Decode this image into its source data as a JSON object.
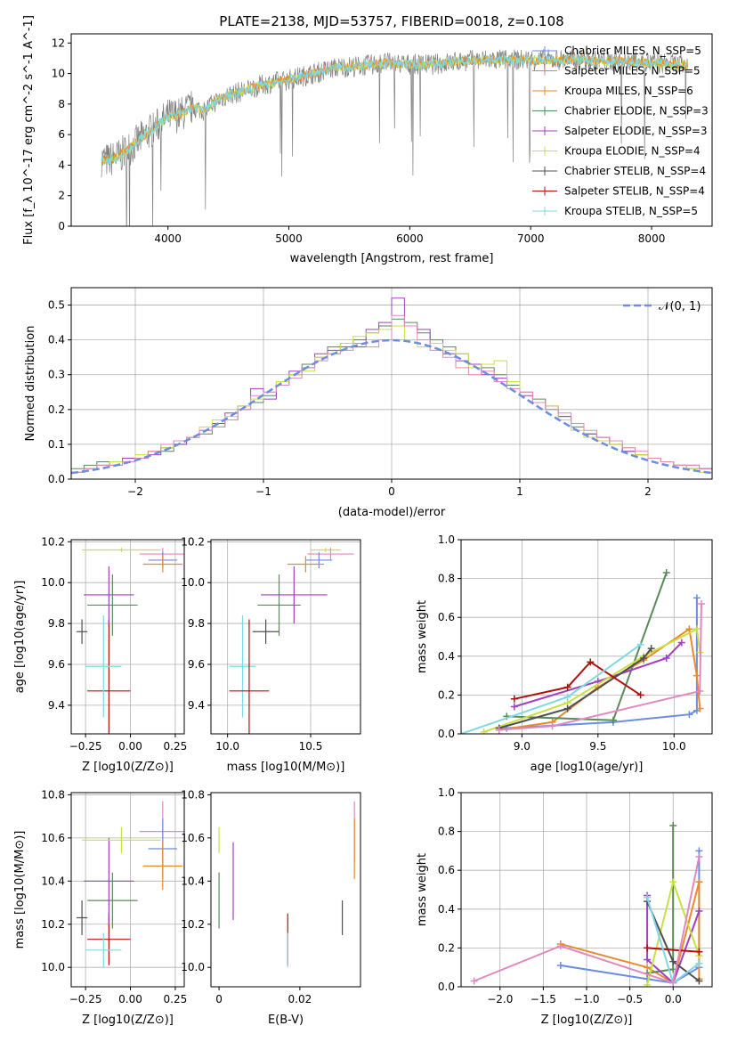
{
  "colors": {
    "chabrier_miles": "#6a8ee0",
    "salpeter_miles": "#e07a7a",
    "kroupa_miles": "#e88a2e",
    "chabrier_elodie": "#5a8a5a",
    "salpeter_elodie": "#a040c0",
    "kroupa_elodie": "#c8e040",
    "chabrier_stelib": "#505050",
    "salpeter_stelib": "#b01010",
    "kroupa_stelib": "#80d8e0",
    "pink": "#e088c0"
  },
  "chart_data": [
    {
      "type": "line",
      "title": "PLATE=2138, MJD=53757, FIBERID=0018, z=0.108",
      "xlabel": "wavelength [Angstrom, rest frame]",
      "ylabel": "Flux [f_λ 10^-17 erg cm^-2 s^-1 A^-1]",
      "xlim": [
        3200,
        8500
      ],
      "ylim": [
        0,
        12.6
      ],
      "xticks": [
        4000,
        5000,
        6000,
        7000,
        8000
      ],
      "yticks": [
        0,
        2,
        4,
        6,
        8,
        10,
        12
      ],
      "legend": "right",
      "legend_entries": [
        "Chabrier MILES, N_SSP=5",
        "Salpeter MILES, N_SSP=5",
        "Kroupa MILES, N_SSP=6",
        "Chabrier ELODIE, N_SSP=3",
        "Salpeter ELODIE, N_SSP=3",
        "Kroupa ELODIE, N_SSP=4",
        "Chabrier STELIB, N_SSP=4",
        "Salpeter STELIB, N_SSP=4",
        "Kroupa STELIB, N_SSP=5"
      ],
      "spectrum": {
        "x": [
          3450,
          3500,
          3600,
          3700,
          3800,
          3900,
          4000,
          4100,
          4200,
          4300,
          4400,
          4500,
          4600,
          4800,
          5000,
          5200,
          5400,
          5600,
          5800,
          6000,
          6200,
          6400,
          6600,
          6800,
          7000,
          7200,
          7400,
          7600,
          7800,
          8000,
          8200,
          8300
        ],
        "model": [
          4.4,
          4.3,
          4.6,
          5.2,
          5.9,
          6.5,
          7.2,
          7.3,
          7.8,
          7.6,
          8.2,
          8.6,
          8.8,
          9.3,
          9.6,
          10.0,
          10.4,
          10.5,
          10.7,
          10.6,
          10.6,
          10.8,
          10.9,
          10.9,
          10.9,
          10.9,
          10.9,
          10.8,
          10.8,
          10.7,
          10.6,
          10.5
        ]
      }
    },
    {
      "type": "bar",
      "xlabel": "(data-model)/error",
      "ylabel": "Normed distribution",
      "xlim": [
        -2.5,
        2.5
      ],
      "ylim": [
        0,
        0.55
      ],
      "xticks": [
        -2,
        -1,
        0,
        1,
        2
      ],
      "yticks": [
        0,
        0.1,
        0.2,
        0.3,
        0.4,
        0.5
      ],
      "legend": "top-right",
      "legend_label": "N(0,1)",
      "bin_edges": [
        -2.5,
        -2.4,
        -2.3,
        -2.2,
        -2.1,
        -2.0,
        -1.9,
        -1.8,
        -1.7,
        -1.6,
        -1.5,
        -1.4,
        -1.3,
        -1.2,
        -1.1,
        -1.0,
        -0.9,
        -0.8,
        -0.7,
        -0.6,
        -0.5,
        -0.4,
        -0.3,
        -0.2,
        -0.1,
        0.0,
        0.1,
        0.2,
        0.3,
        0.4,
        0.5,
        0.6,
        0.7,
        0.8,
        0.9,
        1.0,
        1.1,
        1.2,
        1.3,
        1.4,
        1.5,
        1.6,
        1.7,
        1.8,
        1.9,
        2.0,
        2.1,
        2.2,
        2.3,
        2.4,
        2.5
      ],
      "series": [
        {
          "color": "chabrier_elodie",
          "values": [
            0.03,
            0.04,
            0.05,
            0.04,
            0.05,
            0.06,
            0.08,
            0.08,
            0.1,
            0.12,
            0.13,
            0.15,
            0.17,
            0.2,
            0.22,
            0.24,
            0.28,
            0.3,
            0.33,
            0.35,
            0.38,
            0.39,
            0.4,
            0.42,
            0.44,
            0.46,
            0.45,
            0.42,
            0.4,
            0.38,
            0.36,
            0.33,
            0.32,
            0.3,
            0.27,
            0.25,
            0.23,
            0.2,
            0.18,
            0.15,
            0.13,
            0.12,
            0.1,
            0.08,
            0.07,
            0.06,
            0.05,
            0.04,
            0.04,
            0.03
          ]
        },
        {
          "color": "salpeter_elodie",
          "values": [
            0.02,
            0.03,
            0.04,
            0.05,
            0.06,
            0.06,
            0.07,
            0.09,
            0.1,
            0.12,
            0.14,
            0.16,
            0.19,
            0.21,
            0.26,
            0.23,
            0.27,
            0.31,
            0.32,
            0.36,
            0.37,
            0.38,
            0.38,
            0.43,
            0.45,
            0.52,
            0.44,
            0.43,
            0.39,
            0.36,
            0.34,
            0.33,
            0.3,
            0.29,
            0.28,
            0.24,
            0.22,
            0.21,
            0.18,
            0.16,
            0.13,
            0.12,
            0.1,
            0.08,
            0.07,
            0.06,
            0.05,
            0.04,
            0.03,
            0.03
          ]
        },
        {
          "color": "kroupa_elodie",
          "values": [
            0.02,
            0.03,
            0.04,
            0.05,
            0.05,
            0.07,
            0.08,
            0.09,
            0.11,
            0.12,
            0.15,
            0.17,
            0.18,
            0.21,
            0.23,
            0.25,
            0.28,
            0.3,
            0.31,
            0.35,
            0.36,
            0.39,
            0.41,
            0.42,
            0.43,
            0.44,
            0.4,
            0.38,
            0.39,
            0.37,
            0.36,
            0.32,
            0.33,
            0.34,
            0.28,
            0.25,
            0.22,
            0.21,
            0.17,
            0.14,
            0.12,
            0.11,
            0.1,
            0.09,
            0.07,
            0.06,
            0.05,
            0.04,
            0.03,
            0.02
          ]
        },
        {
          "color": "pink",
          "values": [
            0.02,
            0.03,
            0.04,
            0.04,
            0.05,
            0.06,
            0.08,
            0.1,
            0.11,
            0.12,
            0.14,
            0.15,
            0.17,
            0.2,
            0.24,
            0.25,
            0.27,
            0.29,
            0.32,
            0.34,
            0.36,
            0.37,
            0.39,
            0.38,
            0.4,
            0.47,
            0.44,
            0.4,
            0.37,
            0.35,
            0.32,
            0.3,
            0.31,
            0.28,
            0.26,
            0.25,
            0.22,
            0.2,
            0.19,
            0.16,
            0.14,
            0.12,
            0.11,
            0.09,
            0.08,
            0.06,
            0.05,
            0.04,
            0.04,
            0.03
          ]
        }
      ],
      "gaussian": {
        "mean": 0,
        "sigma": 1
      }
    },
    {
      "type": "errorbar",
      "xlabel": "Z [log10(Z/Z⊙)]",
      "ylabel": "age  [log10(age/yr)]",
      "xlim": [
        -0.33,
        0.3
      ],
      "ylim": [
        9.26,
        10.21
      ],
      "xticks": [
        -0.25,
        0.0,
        0.25
      ],
      "yticks": [
        9.4,
        9.6,
        9.8,
        10.0,
        10.2
      ],
      "points": [
        {
          "x": -0.27,
          "y": 9.76,
          "xerr": 0.03,
          "yerr": 0.06,
          "color": "chabrier_stelib"
        },
        {
          "x": -0.12,
          "y": 9.47,
          "xerr": 0.12,
          "yerr": 0.35,
          "color": "salpeter_stelib"
        },
        {
          "x": -0.15,
          "y": 9.59,
          "xerr": 0.1,
          "yerr": 0.25,
          "color": "kroupa_stelib"
        },
        {
          "x": -0.12,
          "y": 9.94,
          "xerr": 0.14,
          "yerr": 0.14,
          "color": "salpeter_elodie"
        },
        {
          "x": -0.1,
          "y": 9.89,
          "xerr": 0.14,
          "yerr": 0.15,
          "color": "chabrier_elodie"
        },
        {
          "x": -0.05,
          "y": 10.16,
          "xerr": 0.22,
          "yerr": 0.01,
          "color": "kroupa_elodie"
        },
        {
          "x": 0.18,
          "y": 10.14,
          "xerr": 0.13,
          "yerr": 0.03,
          "color": "pink"
        },
        {
          "x": 0.18,
          "y": 10.11,
          "xerr": 0.08,
          "yerr": 0.04,
          "color": "chabrier_miles"
        },
        {
          "x": 0.18,
          "y": 10.09,
          "xerr": 0.11,
          "yerr": 0.04,
          "color": "kroupa_miles"
        }
      ]
    },
    {
      "type": "errorbar",
      "xlabel": "mass [log10(M/M⊙)]",
      "ylabel": "",
      "xlim": [
        9.9,
        10.8
      ],
      "ylim": [
        9.26,
        10.21
      ],
      "xticks": [
        10.0,
        10.5
      ],
      "yticks": [
        9.4,
        9.6,
        9.8,
        10.0,
        10.2
      ],
      "points": [
        {
          "x": 10.09,
          "y": 9.59,
          "xerr": 0.08,
          "yerr": 0.25,
          "color": "kroupa_stelib"
        },
        {
          "x": 10.13,
          "y": 9.47,
          "xerr": 0.12,
          "yerr": 0.35,
          "color": "salpeter_stelib"
        },
        {
          "x": 10.23,
          "y": 9.76,
          "xerr": 0.08,
          "yerr": 0.06,
          "color": "chabrier_stelib"
        },
        {
          "x": 10.31,
          "y": 9.89,
          "xerr": 0.13,
          "yerr": 0.15,
          "color": "chabrier_elodie"
        },
        {
          "x": 10.4,
          "y": 9.94,
          "xerr": 0.2,
          "yerr": 0.14,
          "color": "salpeter_elodie"
        },
        {
          "x": 10.59,
          "y": 10.16,
          "xerr": 0.09,
          "yerr": 0.01,
          "color": "kroupa_elodie"
        },
        {
          "x": 10.62,
          "y": 10.14,
          "xerr": 0.14,
          "yerr": 0.03,
          "color": "pink"
        },
        {
          "x": 10.55,
          "y": 10.11,
          "xerr": 0.08,
          "yerr": 0.04,
          "color": "chabrier_miles"
        },
        {
          "x": 10.47,
          "y": 10.09,
          "xerr": 0.11,
          "yerr": 0.04,
          "color": "kroupa_miles"
        }
      ]
    },
    {
      "type": "line",
      "xlabel": "age  [log10(age/yr)]",
      "ylabel": "mass weight",
      "xlim": [
        8.6,
        10.25
      ],
      "ylim": [
        0,
        1.0
      ],
      "xticks": [
        9.0,
        9.5,
        10.0
      ],
      "yticks": [
        0.0,
        0.2,
        0.4,
        0.6,
        0.8,
        1.0
      ],
      "series": [
        {
          "color": "chabrier_miles",
          "x": [
            8.9,
            9.6,
            10.1,
            10.15,
            10.15
          ],
          "y": [
            0.03,
            0.06,
            0.1,
            0.12,
            0.7
          ]
        },
        {
          "color": "kroupa_miles",
          "x": [
            8.85,
            9.2,
            9.5,
            9.8,
            10.1,
            10.15,
            10.17
          ],
          "y": [
            0.02,
            0.06,
            0.24,
            0.38,
            0.54,
            0.3,
            0.13
          ]
        },
        {
          "color": "chabrier_elodie",
          "x": [
            8.9,
            9.6,
            9.95
          ],
          "y": [
            0.09,
            0.07,
            0.83
          ]
        },
        {
          "color": "salpeter_elodie",
          "x": [
            8.95,
            9.5,
            9.95,
            10.05
          ],
          "y": [
            0.14,
            0.27,
            0.39,
            0.47
          ]
        },
        {
          "color": "kroupa_elodie",
          "x": [
            8.75,
            9.3,
            9.8,
            10.15,
            10.17
          ],
          "y": [
            0.01,
            0.16,
            0.4,
            0.54,
            0.42
          ]
        },
        {
          "color": "chabrier_stelib",
          "x": [
            8.85,
            9.3,
            9.8,
            9.85
          ],
          "y": [
            0.03,
            0.13,
            0.39,
            0.44
          ]
        },
        {
          "color": "salpeter_stelib",
          "x": [
            8.95,
            9.3,
            9.45,
            9.78
          ],
          "y": [
            0.18,
            0.24,
            0.37,
            0.2
          ]
        },
        {
          "color": "kroupa_stelib",
          "x": [
            8.6,
            9.3,
            9.78
          ],
          "y": [
            0.0,
            0.19,
            0.46
          ]
        },
        {
          "color": "pink",
          "x": [
            8.85,
            9.2,
            10.17,
            10.18
          ],
          "y": [
            0.02,
            0.04,
            0.22,
            0.67
          ]
        }
      ]
    },
    {
      "type": "errorbar",
      "xlabel": "Z [log10(Z/Z⊙)]",
      "ylabel": "mass [log10(M/M⊙)]",
      "xlim": [
        -0.33,
        0.3
      ],
      "ylim": [
        9.91,
        10.81
      ],
      "xticks": [
        -0.25,
        0.0,
        0.25
      ],
      "yticks": [
        10.0,
        10.2,
        10.4,
        10.6,
        10.8
      ],
      "points": [
        {
          "x": -0.27,
          "y": 10.23,
          "xerr": 0.03,
          "yerr": 0.08,
          "color": "chabrier_stelib"
        },
        {
          "x": -0.12,
          "y": 10.13,
          "xerr": 0.12,
          "yerr": 0.12,
          "color": "salpeter_stelib"
        },
        {
          "x": -0.15,
          "y": 10.08,
          "xerr": 0.1,
          "yerr": 0.08,
          "color": "kroupa_stelib"
        },
        {
          "x": -0.1,
          "y": 10.31,
          "xerr": 0.14,
          "yerr": 0.13,
          "color": "chabrier_elodie"
        },
        {
          "x": -0.12,
          "y": 10.4,
          "xerr": 0.14,
          "yerr": 0.2,
          "color": "salpeter_elodie"
        },
        {
          "x": -0.05,
          "y": 10.59,
          "xerr": 0.22,
          "yerr": 0.06,
          "color": "kroupa_elodie"
        },
        {
          "x": 0.18,
          "y": 10.63,
          "xerr": 0.13,
          "yerr": 0.14,
          "color": "pink"
        },
        {
          "x": 0.18,
          "y": 10.55,
          "xerr": 0.08,
          "yerr": 0.14,
          "color": "chabrier_miles"
        },
        {
          "x": 0.18,
          "y": 10.47,
          "xerr": 0.11,
          "yerr": 0.11,
          "color": "kroupa_miles"
        }
      ]
    },
    {
      "type": "errorbar",
      "xlabel": "E(B-V)",
      "ylabel": "",
      "xlim": [
        -0.002,
        0.035
      ],
      "ylim": [
        9.91,
        10.81
      ],
      "xticks": [
        0.0,
        0.02
      ],
      "yticks": [
        10.0,
        10.2,
        10.4,
        10.6,
        10.8
      ],
      "points": [
        {
          "x": 0.0,
          "y": 10.31,
          "xerr": 0,
          "yerr": 0.13,
          "color": "chabrier_elodie"
        },
        {
          "x": 0.0,
          "y": 10.59,
          "xerr": 0,
          "yerr": 0.06,
          "color": "kroupa_elodie"
        },
        {
          "x": 0.0035,
          "y": 10.4,
          "xerr": 0,
          "yerr": 0.18,
          "color": "salpeter_elodie"
        },
        {
          "x": 0.017,
          "y": 10.13,
          "xerr": 0,
          "yerr": 0.12,
          "color": "salpeter_stelib"
        },
        {
          "x": 0.017,
          "y": 10.08,
          "xerr": 0,
          "yerr": 0.08,
          "color": "kroupa_stelib"
        },
        {
          "x": 0.0305,
          "y": 10.23,
          "xerr": 0,
          "yerr": 0.08,
          "color": "chabrier_stelib"
        },
        {
          "x": 0.0335,
          "y": 10.63,
          "xerr": 0,
          "yerr": 0.14,
          "color": "pink"
        },
        {
          "x": 0.0335,
          "y": 10.55,
          "xerr": 0,
          "yerr": 0.14,
          "color": "kroupa_miles"
        }
      ]
    },
    {
      "type": "line",
      "xlabel": "Z [log10(Z/Z⊙)]",
      "ylabel": "mass weight",
      "xlim": [
        -2.45,
        0.45
      ],
      "ylim": [
        0,
        1.0
      ],
      "xticks": [
        -2.0,
        -1.5,
        -1.0,
        -0.5,
        0.0
      ],
      "yticks": [
        0.0,
        0.2,
        0.4,
        0.6,
        0.8,
        1.0
      ],
      "series": [
        {
          "color": "chabrier_miles",
          "x": [
            -1.3,
            -0.3,
            0.0,
            0.3,
            0.3
          ],
          "y": [
            0.11,
            0.04,
            0.02,
            0.1,
            0.7
          ]
        },
        {
          "color": "kroupa_miles",
          "x": [
            -1.3,
            -0.3,
            0.0,
            0.3,
            0.3
          ],
          "y": [
            0.22,
            0.1,
            0.02,
            0.54,
            0.04
          ]
        },
        {
          "color": "chabrier_elodie",
          "x": [
            -0.3,
            0.0,
            0.0
          ],
          "y": [
            0.07,
            0.09,
            0.83
          ]
        },
        {
          "color": "salpeter_elodie",
          "x": [
            -0.3,
            -0.3,
            0.0,
            0.3
          ],
          "y": [
            0.47,
            0.14,
            0.02,
            0.39
          ]
        },
        {
          "color": "kroupa_elodie",
          "x": [
            -0.3,
            0.0,
            0.3
          ],
          "y": [
            0.01,
            0.54,
            0.16
          ]
        },
        {
          "color": "chabrier_stelib",
          "x": [
            -0.3,
            0.0,
            0.3
          ],
          "y": [
            0.44,
            0.13,
            0.03
          ]
        },
        {
          "color": "salpeter_stelib",
          "x": [
            -0.3,
            0.3
          ],
          "y": [
            0.2,
            0.18
          ]
        },
        {
          "color": "kroupa_stelib",
          "x": [
            -0.3,
            0.0,
            0.3
          ],
          "y": [
            0.46,
            0.02,
            0.12
          ]
        },
        {
          "color": "pink",
          "x": [
            -2.3,
            -1.3,
            0.0,
            0.3
          ],
          "y": [
            0.03,
            0.21,
            0.02,
            0.67
          ]
        }
      ]
    }
  ]
}
